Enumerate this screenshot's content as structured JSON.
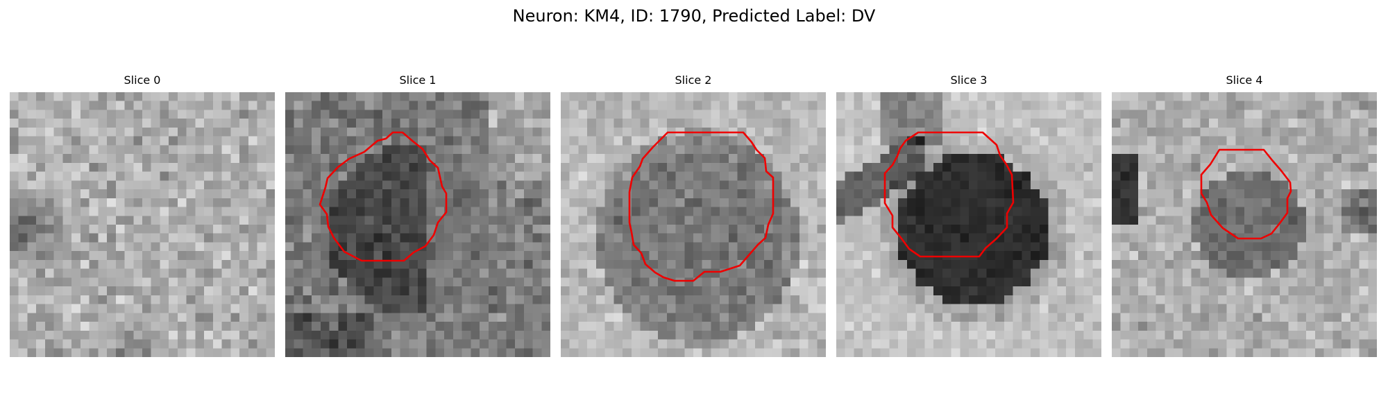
{
  "figure": {
    "title": "Neuron: KM4, ID: 1790, Predicted Label: DV"
  },
  "panels": [
    {
      "title": "Slice 0",
      "has_contour": false
    },
    {
      "title": "Slice 1",
      "has_contour": true
    },
    {
      "title": "Slice 2",
      "has_contour": true
    },
    {
      "title": "Slice 3",
      "has_contour": true
    },
    {
      "title": "Slice 4",
      "has_contour": true
    }
  ],
  "colors": {
    "contour": "#ee0000",
    "background": "#ffffff"
  }
}
